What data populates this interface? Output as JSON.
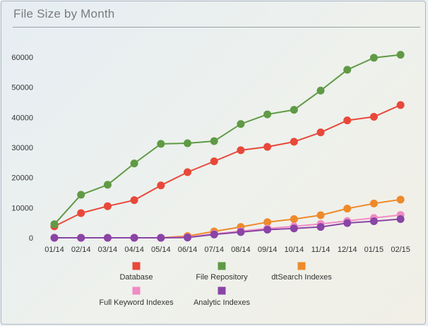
{
  "chart_data": {
    "type": "line",
    "title": "File Size by Month",
    "xlabel": "",
    "ylabel": "",
    "categories": [
      "01/14",
      "02/14",
      "03/14",
      "04/14",
      "05/14",
      "06/14",
      "07/14",
      "08/14",
      "09/14",
      "10/14",
      "11/14",
      "12/14",
      "01/15",
      "02/15"
    ],
    "ylim": [
      0,
      65000
    ],
    "yticks": [
      0,
      10000,
      20000,
      30000,
      40000,
      50000,
      60000
    ],
    "ytick_labels": [
      "0",
      "10000",
      "20000",
      "30000",
      "40000",
      "50000",
      "60000"
    ],
    "grid": false,
    "legend_position": "bottom",
    "series": [
      {
        "name": "Database",
        "color": "#e8483a",
        "values": [
          3800,
          8200,
          10500,
          12500,
          17400,
          21800,
          25400,
          29100,
          30200,
          31900,
          35000,
          39000,
          40200,
          44100
        ]
      },
      {
        "name": "File Repository",
        "color": "#5f9a45",
        "values": [
          4500,
          14300,
          17600,
          24700,
          31200,
          31400,
          32100,
          37800,
          41000,
          42500,
          48900,
          55800,
          59800,
          60800
        ]
      },
      {
        "name": "dtSearch Indexes",
        "color": "#ee8a2a",
        "values": [
          0,
          0,
          0,
          0,
          0,
          600,
          2100,
          3600,
          5200,
          6200,
          7500,
          9700,
          11400,
          12700
        ]
      },
      {
        "name": "Full Keyword Indexes",
        "color": "#f08bc5",
        "values": [
          0,
          0,
          0,
          0,
          0,
          200,
          1300,
          2200,
          3100,
          3800,
          4600,
          5600,
          6600,
          7600
        ]
      },
      {
        "name": "Analytic Indexes",
        "color": "#8a44a6",
        "values": [
          0,
          0,
          0,
          0,
          0,
          100,
          1100,
          1900,
          2700,
          3100,
          3600,
          4900,
          5500,
          6200
        ]
      }
    ]
  }
}
